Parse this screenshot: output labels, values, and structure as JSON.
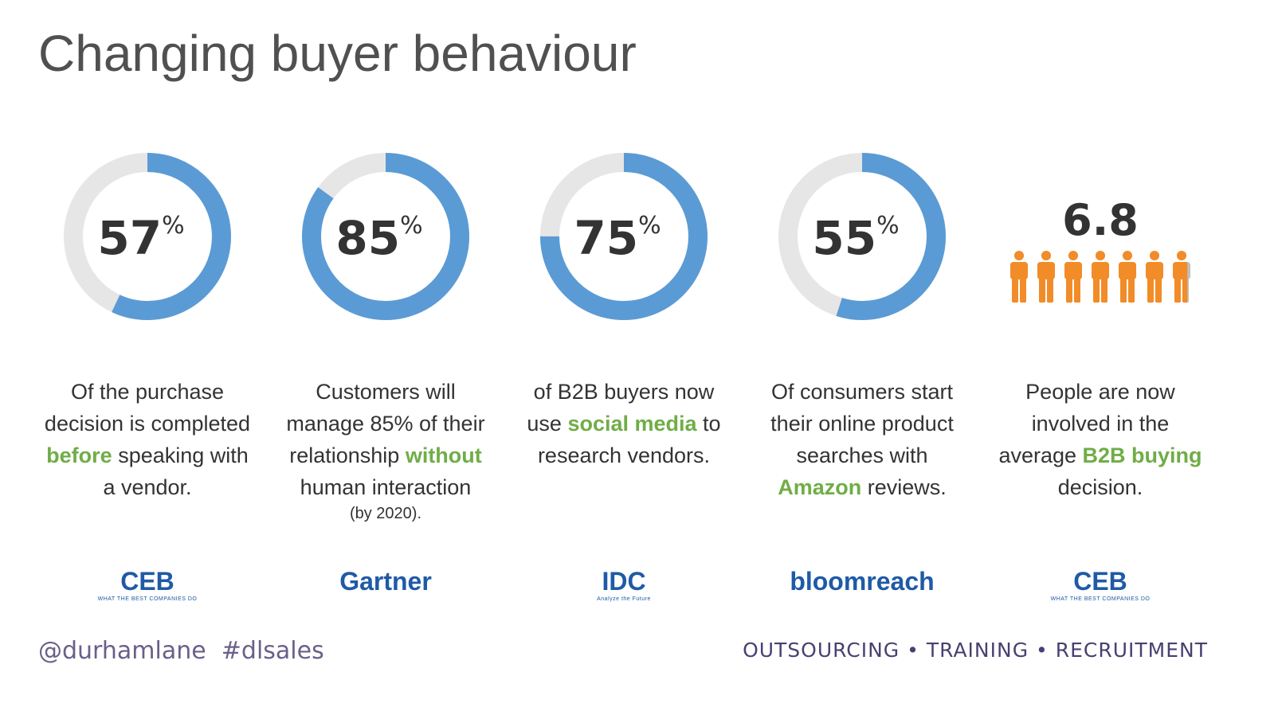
{
  "title": "Changing buyer behaviour",
  "stats": [
    {
      "kind": "donut",
      "value": 57,
      "unit": "%",
      "color": "#5b9bd5",
      "track_color": "#e6e6e6",
      "description": [
        {
          "text": "Of the purchase decision is completed "
        },
        {
          "text": "before",
          "highlight": true
        },
        {
          "text": " speaking with a vendor."
        }
      ],
      "source": {
        "name": "CEB",
        "tagline": "WHAT THE BEST COMPANIES DO"
      }
    },
    {
      "kind": "donut",
      "value": 85,
      "unit": "%",
      "color": "#5b9bd5",
      "track_color": "#e6e6e6",
      "description": [
        {
          "text": "Customers will manage 85% of their relationship "
        },
        {
          "text": "without",
          "highlight": true
        },
        {
          "text": " human interaction"
        }
      ],
      "note": "(by 2020).",
      "source": {
        "name": "Gartner"
      }
    },
    {
      "kind": "donut",
      "value": 75,
      "unit": "%",
      "color": "#5b9bd5",
      "track_color": "#e6e6e6",
      "description": [
        {
          "text": "of B2B buyers now use "
        },
        {
          "text": "social media",
          "highlight": true
        },
        {
          "text": " to research vendors."
        }
      ],
      "source": {
        "name": "IDC",
        "tagline": "Analyze the Future"
      }
    },
    {
      "kind": "donut",
      "value": 55,
      "unit": "%",
      "color": "#5b9bd5",
      "track_color": "#e6e6e6",
      "description": [
        {
          "text": "Of consumers start their online product searches with "
        },
        {
          "text": "Amazon",
          "highlight": true
        },
        {
          "text": " reviews."
        }
      ],
      "source": {
        "name": "bloomreach"
      }
    },
    {
      "kind": "people",
      "value": 6.8,
      "color": "#f28c28",
      "track_color": "#bfbfbf",
      "description": [
        {
          "text": "People are now involved in the average "
        },
        {
          "text": "B2B buying",
          "highlight": true
        },
        {
          "text": " decision."
        }
      ],
      "source": {
        "name": "CEB",
        "tagline": "WHAT THE BEST COMPANIES DO"
      }
    }
  ],
  "footer": {
    "handle": "@durhamlane",
    "hashtag": "#dlsales",
    "services": "OUTSOURCING • TRAINING • RECRUITMENT"
  }
}
